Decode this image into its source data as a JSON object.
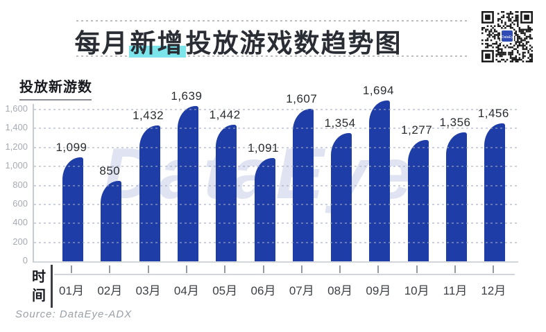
{
  "header": {
    "title_prefix": "每月",
    "title_highlight": "新增",
    "title_suffix": "投放游戏数趋势图"
  },
  "qr": {
    "logo_text": "DataEye"
  },
  "axes": {
    "y_title": "投放新游数",
    "x_title": "时间"
  },
  "watermark": "DataEye",
  "footer": {
    "source": "Source: DataEye-ADX"
  },
  "colors": {
    "bar": "#1e3da6",
    "title_highlight": "#7ce4eb",
    "watermark": "#e0e3f1"
  },
  "chart_data": {
    "type": "bar",
    "title": "每月新增投放游戏数趋势图",
    "xlabel": "时间",
    "ylabel": "投放新游数",
    "categories": [
      "01月",
      "02月",
      "03月",
      "04月",
      "05月",
      "06月",
      "07月",
      "08月",
      "09月",
      "10月",
      "11月",
      "12月"
    ],
    "values": [
      1099,
      850,
      1432,
      1639,
      1442,
      1091,
      1607,
      1354,
      1694,
      1277,
      1356,
      1456
    ],
    "value_labels": [
      "1,099",
      "850",
      "1,432",
      "1,639",
      "1,442",
      "1,091",
      "1,607",
      "1,354",
      "1,694",
      "1,277",
      "1,356",
      "1,456"
    ],
    "ylim": [
      0,
      1600
    ],
    "y_tick_step": 200,
    "y_tick_labels": [
      "0",
      "200",
      "400",
      "600",
      "800",
      "1,000",
      "1,200",
      "1,400",
      "1,600"
    ],
    "grid": "horizontal-dotted",
    "legend": "none",
    "bar_color": "#1e3da6"
  }
}
